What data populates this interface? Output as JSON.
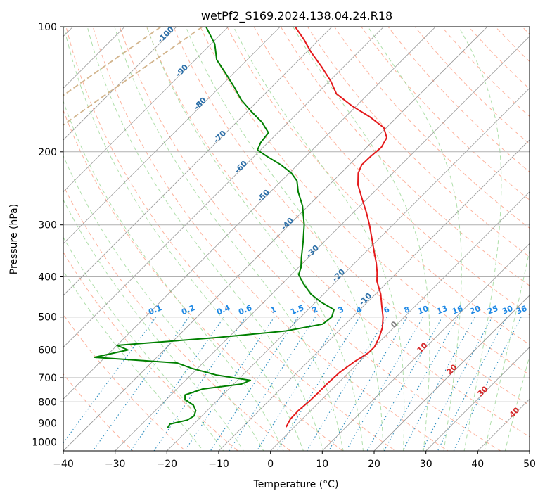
{
  "chart_data": {
    "type": "line",
    "title": "wetPf2_S169.2024.138.04.24.R18",
    "xlabel": "Temperature (°C)",
    "ylabel": "Pressure (hPa)",
    "xlim": [
      -40,
      50
    ],
    "ylim": [
      1050,
      100
    ],
    "y_scale": "log",
    "x_ticks": [
      -40,
      -30,
      -20,
      -10,
      0,
      10,
      20,
      30,
      40,
      50
    ],
    "x_tick_labels": [
      "−40",
      "−30",
      "−20",
      "−10",
      "0",
      "10",
      "20",
      "30",
      "40",
      "50"
    ],
    "y_ticks": [
      1000,
      900,
      800,
      700,
      600,
      500,
      400,
      300,
      200,
      100
    ],
    "y_tick_labels": [
      "1000",
      "900",
      "800",
      "700",
      "600",
      "500",
      "400",
      "300",
      "200",
      "100"
    ],
    "grid": true,
    "skew_deg": 45,
    "series": [
      {
        "kind": "temperature",
        "color": "#e41a1c",
        "points": [
          [
            920,
            -1.6
          ],
          [
            880,
            -2.3
          ],
          [
            840,
            -2.4
          ],
          [
            800,
            -2.1
          ],
          [
            760,
            -2.0
          ],
          [
            720,
            -2.0
          ],
          [
            680,
            -1.8
          ],
          [
            640,
            -1.0
          ],
          [
            610,
            0.0
          ],
          [
            590,
            0.0
          ],
          [
            560,
            -0.9
          ],
          [
            530,
            -2.2
          ],
          [
            500,
            -4.1
          ],
          [
            470,
            -6.5
          ],
          [
            440,
            -9.0
          ],
          [
            410,
            -12.2
          ],
          [
            390,
            -13.9
          ],
          [
            370,
            -15.9
          ],
          [
            350,
            -18.2
          ],
          [
            330,
            -20.6
          ],
          [
            300,
            -24.5
          ],
          [
            280,
            -27.5
          ],
          [
            260,
            -30.9
          ],
          [
            240,
            -34.5
          ],
          [
            225,
            -36.7
          ],
          [
            215,
            -37.6
          ],
          [
            205,
            -37.5
          ],
          [
            195,
            -37.2
          ],
          [
            185,
            -38.0
          ],
          [
            175,
            -40.5
          ],
          [
            165,
            -45.2
          ],
          [
            155,
            -50.9
          ],
          [
            145,
            -56.2
          ],
          [
            135,
            -59.8
          ],
          [
            125,
            -64.2
          ],
          [
            115,
            -69.2
          ],
          [
            107,
            -73.1
          ],
          [
            100,
            -77.1
          ]
        ]
      },
      {
        "kind": "dewpoint",
        "color": "#008000",
        "points": [
          [
            925,
            -24.3
          ],
          [
            905,
            -24.6
          ],
          [
            885,
            -22.0
          ],
          [
            865,
            -21.5
          ],
          [
            840,
            -22.2
          ],
          [
            815,
            -23.7
          ],
          [
            790,
            -26.4
          ],
          [
            770,
            -27.3
          ],
          [
            745,
            -25.0
          ],
          [
            725,
            -18.5
          ],
          [
            710,
            -17.5
          ],
          [
            690,
            -25.0
          ],
          [
            665,
            -31.0
          ],
          [
            645,
            -35.0
          ],
          [
            625,
            -52.0
          ],
          [
            600,
            -47.0
          ],
          [
            585,
            -50.0
          ],
          [
            560,
            -32.0
          ],
          [
            540,
            -20.2
          ],
          [
            520,
            -14.4
          ],
          [
            500,
            -14.0
          ],
          [
            480,
            -15.0
          ],
          [
            460,
            -19.0
          ],
          [
            440,
            -22.5
          ],
          [
            415,
            -26.0
          ],
          [
            395,
            -28.6
          ],
          [
            380,
            -29.5
          ],
          [
            360,
            -31.3
          ],
          [
            330,
            -34.0
          ],
          [
            300,
            -37.1
          ],
          [
            270,
            -41.1
          ],
          [
            250,
            -44.6
          ],
          [
            235,
            -47.0
          ],
          [
            225,
            -49.6
          ],
          [
            215,
            -53.2
          ],
          [
            205,
            -57.6
          ],
          [
            198,
            -60.6
          ],
          [
            190,
            -61.4
          ],
          [
            180,
            -61.8
          ],
          [
            170,
            -65.0
          ],
          [
            160,
            -69.2
          ],
          [
            150,
            -73.4
          ],
          [
            140,
            -77.1
          ],
          [
            130,
            -81.3
          ],
          [
            120,
            -85.9
          ],
          [
            110,
            -89.3
          ],
          [
            100,
            -94.3
          ]
        ]
      }
    ],
    "dry_adiabat_labels": [
      "-100",
      "-90",
      "-80",
      "-70",
      "-60",
      "-50",
      "-40",
      "-30",
      "-20",
      "-10"
    ],
    "mixing_ratio_labels": [
      "0.1",
      "0.2",
      "0.4",
      "0.6",
      "1",
      "1.5",
      "2",
      "3",
      "4",
      "6",
      "8",
      "10",
      "13",
      "16",
      "20",
      "25",
      "30",
      "36"
    ],
    "moist_adiabat_labels": [
      "0",
      "10",
      "20",
      "30",
      "40"
    ],
    "colors": {
      "temperature": "#e41a1c",
      "dewpoint": "#008000",
      "isotherm": "#7f7f7f",
      "dry_adiabat": "#fc9272",
      "moist_adiabat": "#a1d99b",
      "mixing_ratio": "#2b8cbe",
      "mixing_label": "#1e88e5",
      "dry_label": "#2c6fa8",
      "moist_label": "#d62728",
      "moist_zero_label": "#808080",
      "lcl_curve": "#d2b48c"
    }
  }
}
